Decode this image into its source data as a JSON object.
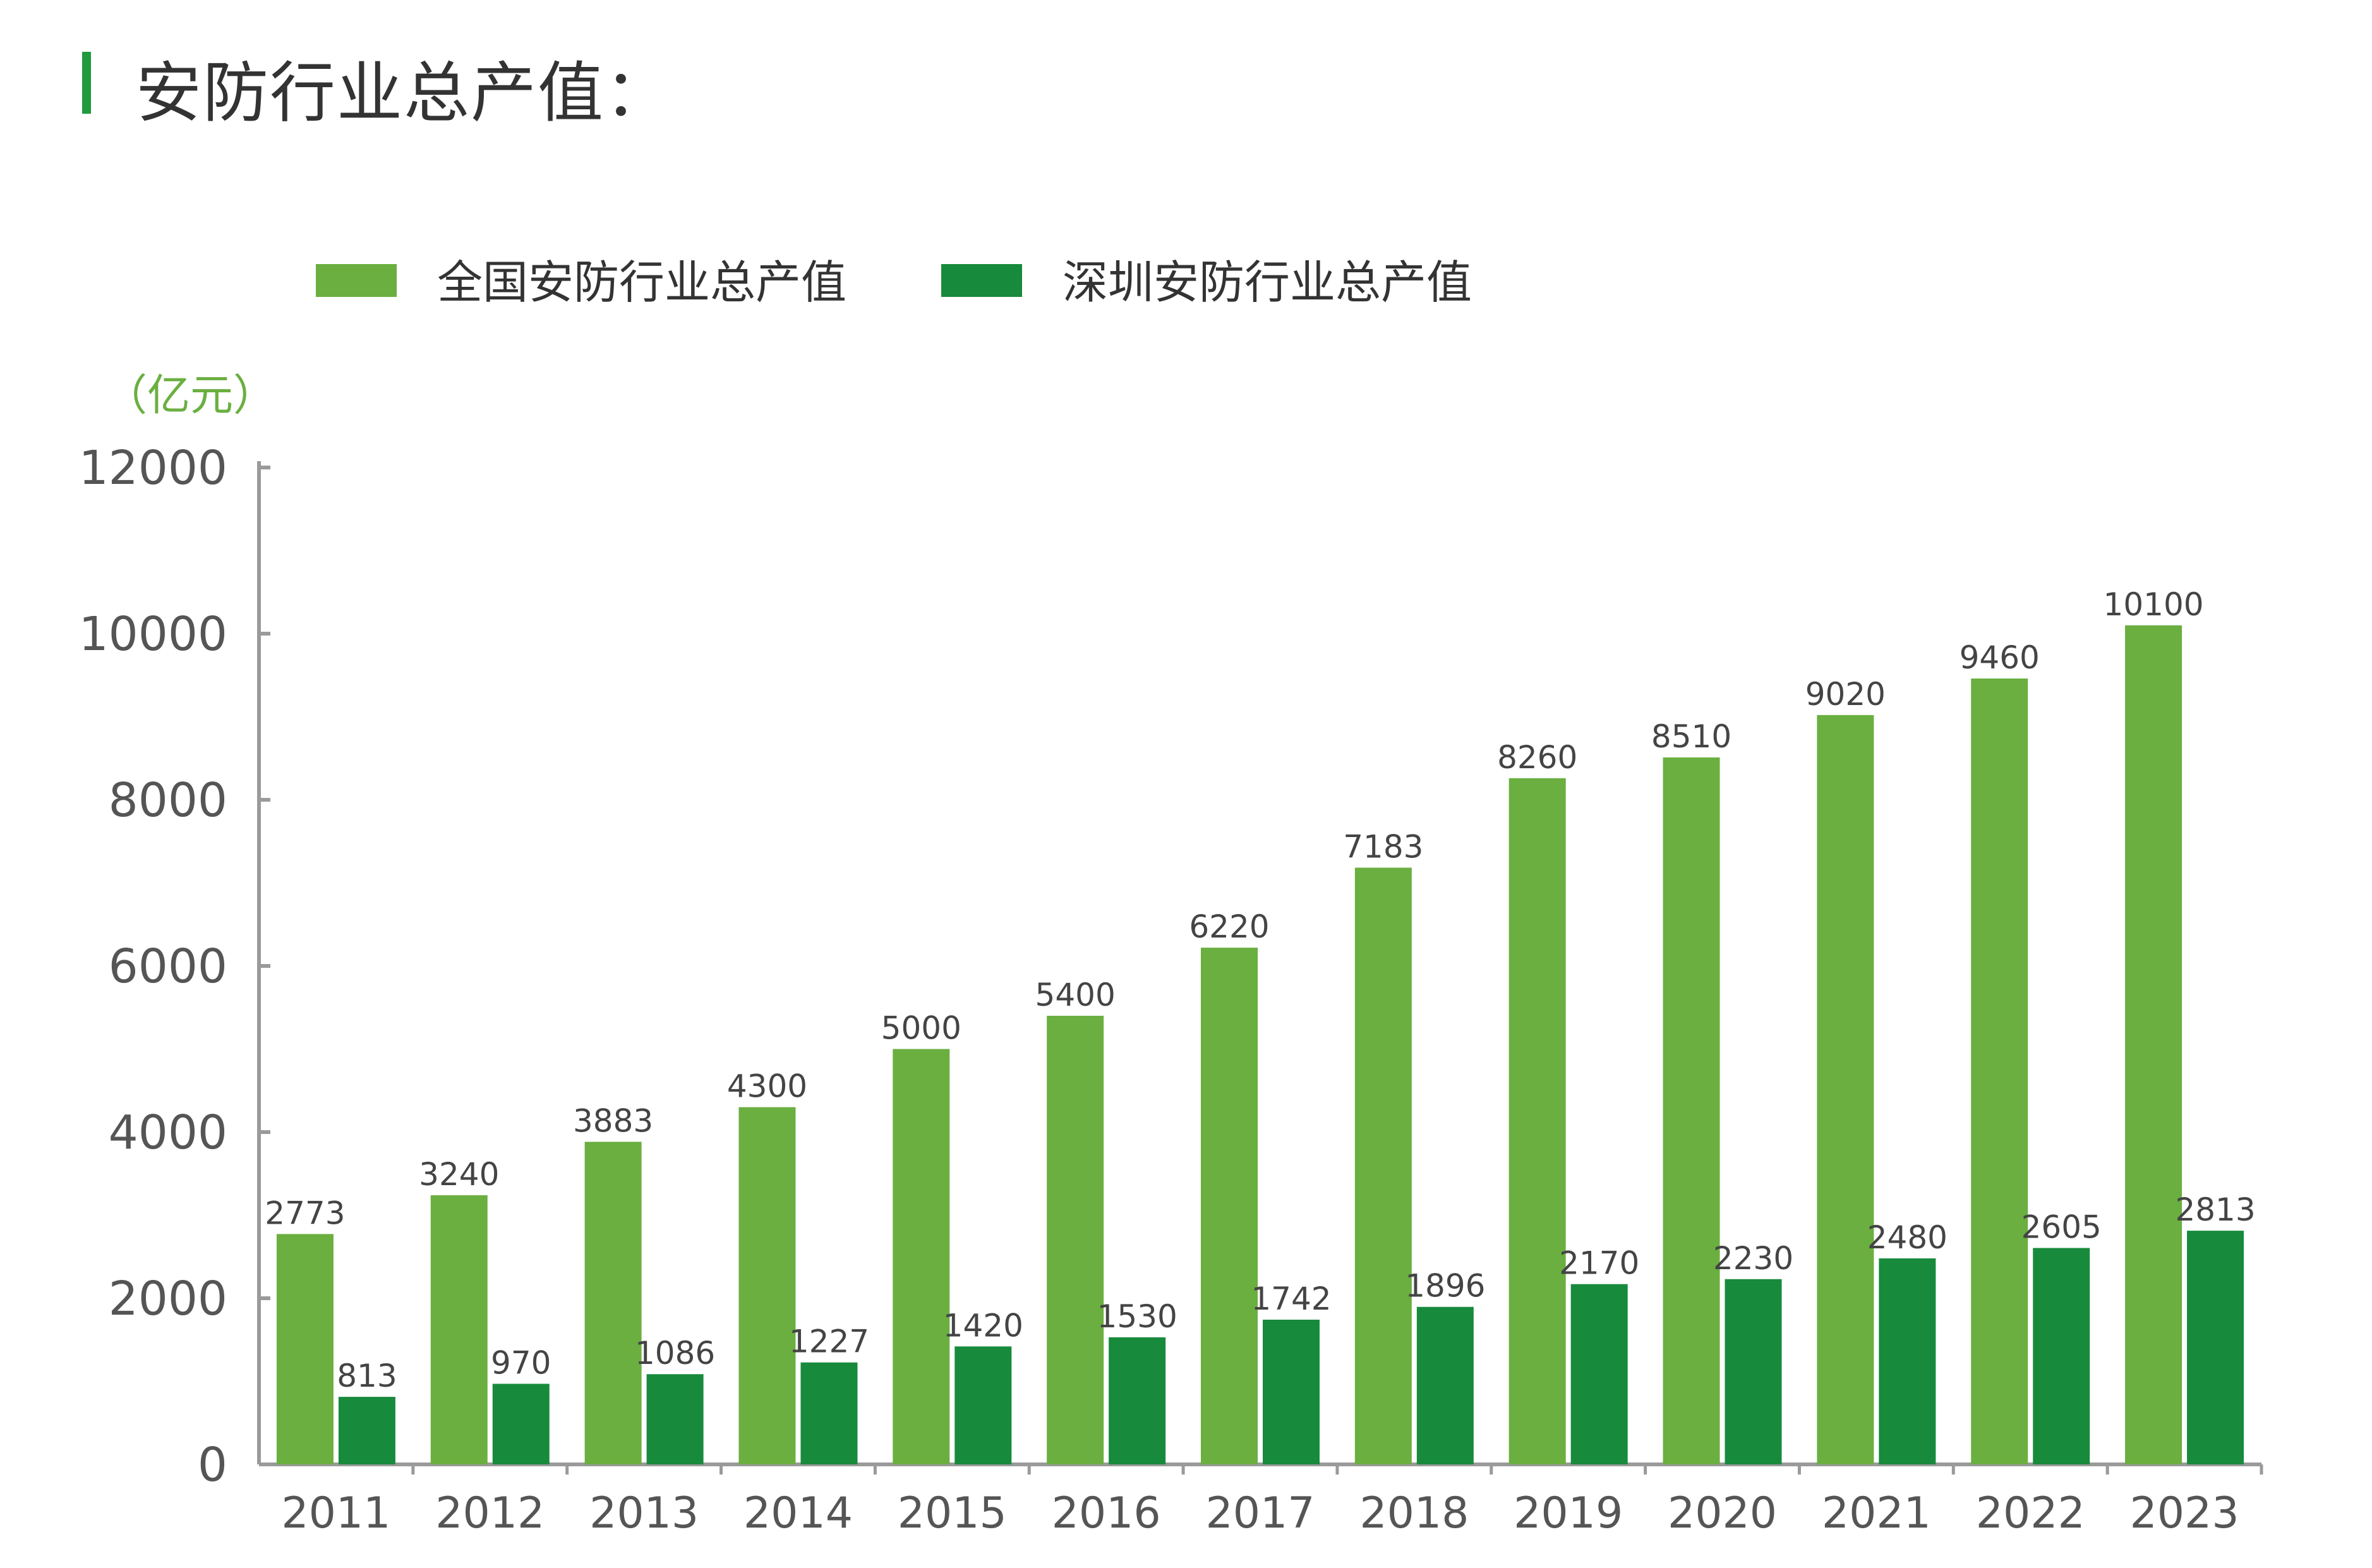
{
  "title": "安防行业总产值：",
  "colors": {
    "national": "#6aaf40",
    "shenzhen": "#188a3c",
    "accent_bar": "#1f9a3c",
    "axis": "#9a9a9a"
  },
  "legend": [
    {
      "name": "全国安防行业总产值",
      "color": "#6aaf40"
    },
    {
      "name": "深圳安防行业总产值",
      "color": "#188a3c"
    }
  ],
  "unit_label": "（亿元）",
  "chart_data": {
    "type": "bar",
    "categories": [
      "2011",
      "2012",
      "2013",
      "2014",
      "2015",
      "2016",
      "2017",
      "2018",
      "2019",
      "2020",
      "2021",
      "2022",
      "2023"
    ],
    "series": [
      {
        "name": "全国安防行业总产值",
        "color": "#6aaf40",
        "values": [
          2773,
          3240,
          3883,
          4300,
          5000,
          5400,
          6220,
          7183,
          8260,
          8510,
          9020,
          9460,
          10100
        ]
      },
      {
        "name": "深圳安防行业总产值",
        "color": "#188a3c",
        "values": [
          813,
          970,
          1086,
          1227,
          1420,
          1530,
          1742,
          1896,
          2170,
          2230,
          2480,
          2605,
          2813
        ]
      }
    ],
    "y_ticks": [
      0,
      2000,
      4000,
      6000,
      8000,
      10000,
      12000
    ],
    "ylim": [
      0,
      12000
    ],
    "grid": false,
    "legend_position": "top-left"
  }
}
